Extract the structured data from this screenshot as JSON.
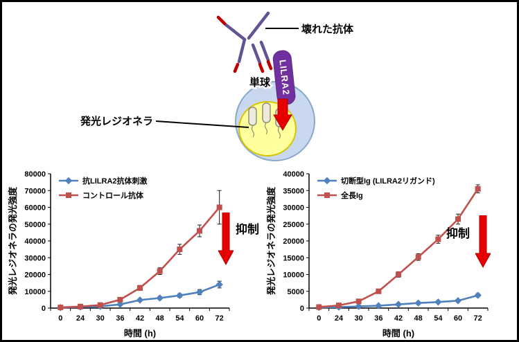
{
  "figure": {
    "diagram": {
      "broken_antibody_label": "壊れた抗体",
      "lilra2_label": "LILRA2",
      "monocyte_label": "単球",
      "legionella_label": "発光レジオネラ"
    }
  },
  "chart_data": [
    {
      "type": "line",
      "title": "",
      "xlabel": "時間 (h)",
      "ylabel": "発光レジオネラの発光強度",
      "categories": [
        0,
        24,
        30,
        36,
        42,
        48,
        54,
        60,
        72
      ],
      "ylim": [
        0,
        80000
      ],
      "ytick_step": 10000,
      "grid": false,
      "legend_position": "top-left",
      "annotation": "抑制",
      "series": [
        {
          "name": "抗LILRA2抗体刺激",
          "color": "#4f81bd",
          "marker": "diamond",
          "values": [
            300,
            700,
            1000,
            2200,
            4800,
            6000,
            7500,
            9500,
            14000
          ],
          "errors": [
            150,
            250,
            300,
            500,
            800,
            900,
            1100,
            1500,
            2000
          ]
        },
        {
          "name": "コントロール抗体",
          "color": "#c0504d",
          "marker": "square",
          "values": [
            400,
            900,
            1800,
            5000,
            12000,
            22000,
            35000,
            46000,
            60000
          ],
          "errors": [
            200,
            300,
            500,
            800,
            1500,
            2000,
            3000,
            3500,
            10000
          ]
        }
      ]
    },
    {
      "type": "line",
      "title": "",
      "xlabel": "時間 (h)",
      "ylabel": "発光レジオネラの発光強度",
      "categories": [
        0,
        24,
        30,
        36,
        42,
        48,
        54,
        60,
        72
      ],
      "ylim": [
        0,
        40000
      ],
      "ytick_step": 5000,
      "grid": false,
      "legend_position": "top-left",
      "annotation": "抑制",
      "series": [
        {
          "name": "切断型Ig (LILRA2リガンド)",
          "color": "#4f81bd",
          "marker": "diamond",
          "values": [
            200,
            300,
            500,
            700,
            1100,
            1500,
            1800,
            2200,
            3800
          ],
          "errors": [
            100,
            120,
            150,
            200,
            250,
            300,
            300,
            350,
            500
          ]
        },
        {
          "name": "全長Ig",
          "color": "#c0504d",
          "marker": "square",
          "values": [
            300,
            800,
            2000,
            5000,
            10000,
            15200,
            20500,
            26500,
            35500
          ],
          "errors": [
            150,
            300,
            400,
            600,
            800,
            1000,
            1200,
            1500,
            1200
          ]
        }
      ]
    }
  ]
}
